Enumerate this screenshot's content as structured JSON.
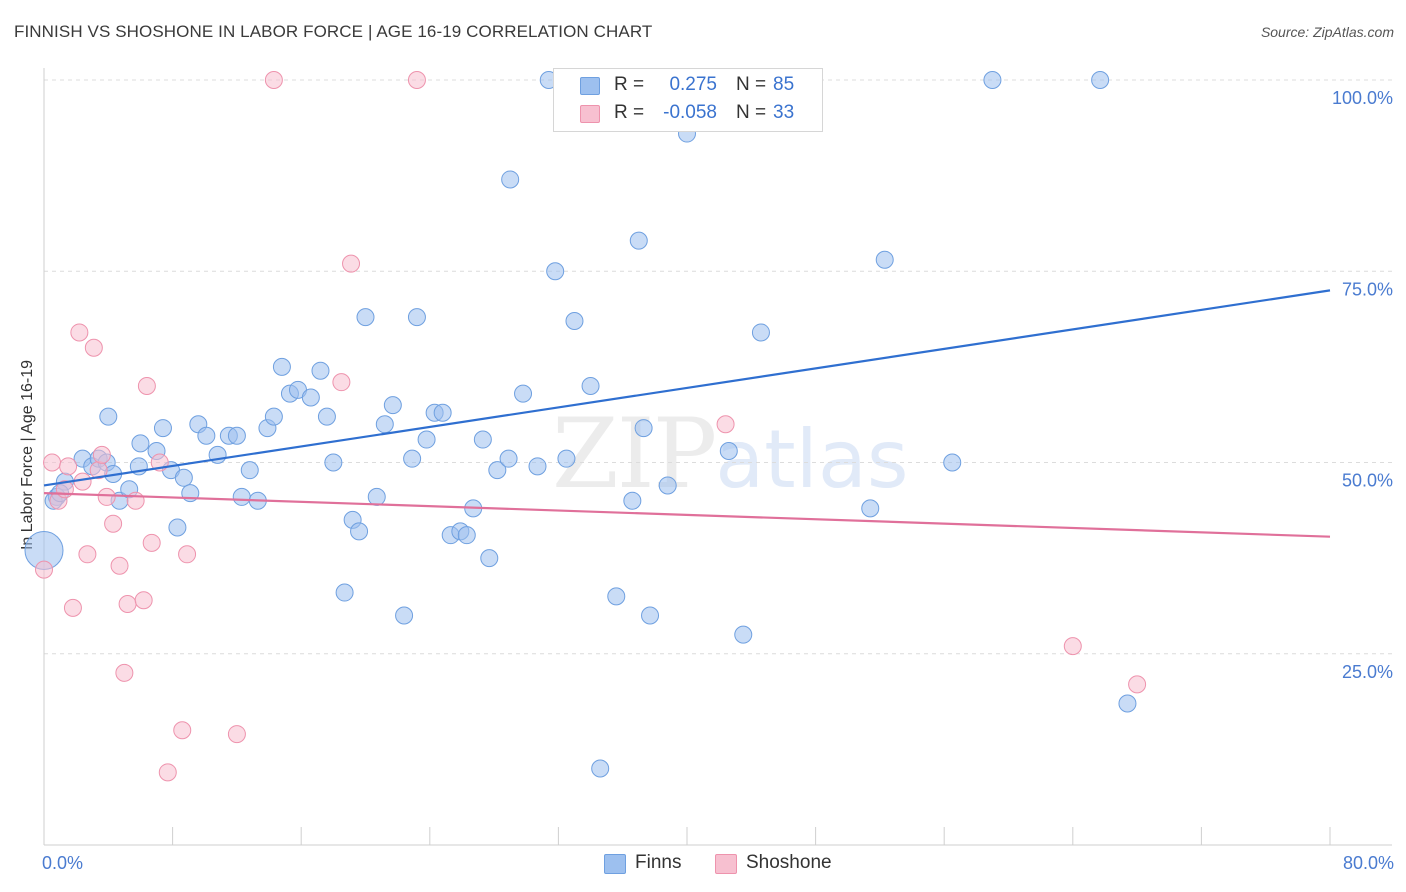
{
  "header": {
    "title": "FINNISH VS SHOSHONE IN LABOR FORCE | AGE 16-19 CORRELATION CHART",
    "source": "Source: ZipAtlas.com"
  },
  "watermark": {
    "zip": "ZIP",
    "atlas": "atlas"
  },
  "legend": {
    "rows": [
      {
        "r_label": "R =",
        "r_value": "0.275",
        "n_label": "N =",
        "n_value": "85",
        "color": "#9dc0ef",
        "border": "#6fa0e0"
      },
      {
        "r_label": "R =",
        "r_value": "-0.058",
        "n_label": "N =",
        "n_value": "33",
        "color": "#f7c0d0",
        "border": "#ee93ad"
      }
    ]
  },
  "bottom_legend": {
    "finns": "Finns",
    "shoshone": "Shoshone"
  },
  "chart_data": {
    "type": "scatter",
    "title": "FINNISH VS SHOSHONE IN LABOR FORCE | AGE 16-19 CORRELATION CHART",
    "xlabel": "",
    "ylabel": "In Labor Force | Age 16-19",
    "xlim": [
      0,
      80
    ],
    "ylim": [
      0,
      105
    ],
    "x_ticks": [
      {
        "value": 0,
        "label": "0.0%"
      },
      {
        "value": 80,
        "label": "80.0%"
      }
    ],
    "y_ticks": [
      {
        "value": 25,
        "label": "25.0%"
      },
      {
        "value": 50,
        "label": "50.0%"
      },
      {
        "value": 75,
        "label": "75.0%"
      },
      {
        "value": 100,
        "label": "100.0%"
      }
    ],
    "grid": "horizontal dashed",
    "legend_position": "top-center",
    "series": [
      {
        "name": "Finns",
        "color": "#9dc0ef",
        "stroke": "#6fa0e0",
        "trend": {
          "x": [
            0,
            80
          ],
          "y": [
            47.0,
            72.5
          ],
          "color": "#2f6fd0"
        },
        "points": [
          [
            0.0,
            38.5
          ],
          [
            0.8,
            45.5
          ],
          [
            1.3,
            47.5
          ],
          [
            2.4,
            50.5
          ],
          [
            3.0,
            49.5
          ],
          [
            3.4,
            50.5
          ],
          [
            3.9,
            50.0
          ],
          [
            4.3,
            48.5
          ],
          [
            4.7,
            45.0
          ],
          [
            5.3,
            46.5
          ],
          [
            4.0,
            56.0
          ],
          [
            5.9,
            49.5
          ],
          [
            6.0,
            52.5
          ],
          [
            7.0,
            51.5
          ],
          [
            7.4,
            54.5
          ],
          [
            7.9,
            49.0
          ],
          [
            8.3,
            41.5
          ],
          [
            8.7,
            48.0
          ],
          [
            9.1,
            46.0
          ],
          [
            9.6,
            55.0
          ],
          [
            10.1,
            53.5
          ],
          [
            10.8,
            51.0
          ],
          [
            11.5,
            53.5
          ],
          [
            12.0,
            53.5
          ],
          [
            12.3,
            45.5
          ],
          [
            12.8,
            49.0
          ],
          [
            13.3,
            45.0
          ],
          [
            13.9,
            54.5
          ],
          [
            14.3,
            56.0
          ],
          [
            14.8,
            62.5
          ],
          [
            15.3,
            59.0
          ],
          [
            15.8,
            59.5
          ],
          [
            16.6,
            58.5
          ],
          [
            17.2,
            62.0
          ],
          [
            17.6,
            56.0
          ],
          [
            18.0,
            50.0
          ],
          [
            18.7,
            33.0
          ],
          [
            19.2,
            42.5
          ],
          [
            19.6,
            41.0
          ],
          [
            20.0,
            69.0
          ],
          [
            20.7,
            45.5
          ],
          [
            21.2,
            55.0
          ],
          [
            21.7,
            57.5
          ],
          [
            22.4,
            30.0
          ],
          [
            22.9,
            50.5
          ],
          [
            23.2,
            69.0
          ],
          [
            23.8,
            53.0
          ],
          [
            24.3,
            56.5
          ],
          [
            24.8,
            56.5
          ],
          [
            25.3,
            40.5
          ],
          [
            25.9,
            41.0
          ],
          [
            26.3,
            40.5
          ],
          [
            26.7,
            44.0
          ],
          [
            27.3,
            53.0
          ],
          [
            27.7,
            37.5
          ],
          [
            28.2,
            49.0
          ],
          [
            28.9,
            50.5
          ],
          [
            29.0,
            87.0
          ],
          [
            29.8,
            59.0
          ],
          [
            30.7,
            49.5
          ],
          [
            31.4,
            100.0
          ],
          [
            31.8,
            75.0
          ],
          [
            32.5,
            50.5
          ],
          [
            33.0,
            68.5
          ],
          [
            34.0,
            60.0
          ],
          [
            34.6,
            10.0
          ],
          [
            35.0,
            100.0
          ],
          [
            35.6,
            32.5
          ],
          [
            36.6,
            45.0
          ],
          [
            37.0,
            79.0
          ],
          [
            37.3,
            54.5
          ],
          [
            37.7,
            30.0
          ],
          [
            38.8,
            47.0
          ],
          [
            40.0,
            93.0
          ],
          [
            42.6,
            51.5
          ],
          [
            43.5,
            27.5
          ],
          [
            44.6,
            67.0
          ],
          [
            51.4,
            44.0
          ],
          [
            52.3,
            76.5
          ],
          [
            56.5,
            50.0
          ],
          [
            59.0,
            100.0
          ],
          [
            65.7,
            100.0
          ],
          [
            67.4,
            18.5
          ],
          [
            0.6,
            45.0
          ],
          [
            1.0,
            46.0
          ]
        ]
      },
      {
        "name": "Shoshone",
        "color": "#f7c0d0",
        "stroke": "#ee93ad",
        "trend": {
          "x": [
            0,
            80
          ],
          "y": [
            46.0,
            40.3
          ],
          "color": "#e0709a"
        },
        "points": [
          [
            0.0,
            36.0
          ],
          [
            0.5,
            50.0
          ],
          [
            0.9,
            45.0
          ],
          [
            1.3,
            46.5
          ],
          [
            1.5,
            49.5
          ],
          [
            1.8,
            31.0
          ],
          [
            2.2,
            67.0
          ],
          [
            2.4,
            47.5
          ],
          [
            2.7,
            38.0
          ],
          [
            3.1,
            65.0
          ],
          [
            3.4,
            49.0
          ],
          [
            3.6,
            51.0
          ],
          [
            3.9,
            45.5
          ],
          [
            4.3,
            42.0
          ],
          [
            4.7,
            36.5
          ],
          [
            5.0,
            22.5
          ],
          [
            5.2,
            31.5
          ],
          [
            5.7,
            45.0
          ],
          [
            6.2,
            32.0
          ],
          [
            6.4,
            60.0
          ],
          [
            6.7,
            39.5
          ],
          [
            7.2,
            50.0
          ],
          [
            7.7,
            9.5
          ],
          [
            8.6,
            15.0
          ],
          [
            8.9,
            38.0
          ],
          [
            12.0,
            14.5
          ],
          [
            14.3,
            100.0
          ],
          [
            18.5,
            60.5
          ],
          [
            19.1,
            76.0
          ],
          [
            23.2,
            100.0
          ],
          [
            42.4,
            55.0
          ],
          [
            64.0,
            26.0
          ],
          [
            68.0,
            21.0
          ]
        ]
      }
    ]
  }
}
